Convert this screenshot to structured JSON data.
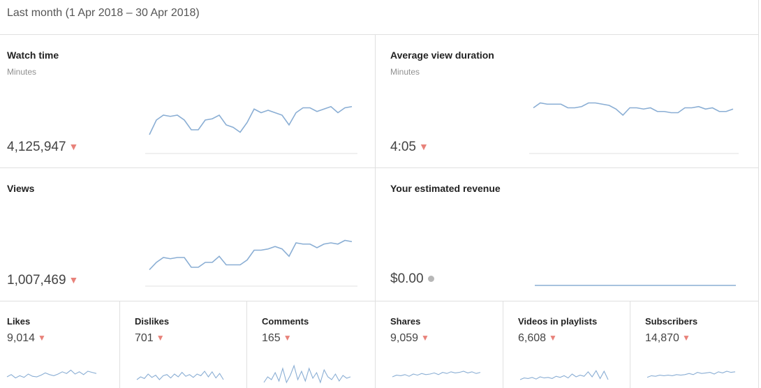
{
  "header": {
    "period": "Last month (1 Apr 2018 – 30 Apr 2018)"
  },
  "colors": {
    "spark": "#8aaed4",
    "down": "#e8827a",
    "axis": "#e0e0e0"
  },
  "big_cards": [
    {
      "id": "watch-time",
      "title": "Watch time",
      "subtitle": "Minutes",
      "value": "4,125,947",
      "trend": "down",
      "spark": [
        58,
        70,
        74,
        73,
        74,
        70,
        62,
        62,
        70,
        71,
        74,
        66,
        64,
        60,
        68,
        79,
        76,
        78,
        76,
        74,
        66,
        76,
        80,
        80,
        77,
        79,
        81,
        76,
        80,
        81
      ]
    },
    {
      "id": "average-view-duration",
      "title": "Average view duration",
      "subtitle": "Minutes",
      "value": "4:05",
      "trend": "down",
      "spark": [
        80,
        84,
        83,
        83,
        83,
        80,
        80,
        81,
        84,
        84,
        83,
        82,
        79,
        74,
        80,
        80,
        79,
        80,
        77,
        77,
        76,
        76,
        80,
        80,
        81,
        79,
        80,
        77,
        77,
        79
      ]
    },
    {
      "id": "views",
      "title": "Views",
      "subtitle": "",
      "value": "1,007,469",
      "trend": "down",
      "spark": [
        56,
        62,
        66,
        65,
        66,
        66,
        58,
        58,
        62,
        62,
        67,
        60,
        60,
        60,
        64,
        72,
        72,
        73,
        75,
        73,
        67,
        78,
        77,
        77,
        74,
        77,
        78,
        77,
        80,
        79
      ]
    },
    {
      "id": "estimated-revenue",
      "title": "Your estimated revenue",
      "subtitle": "",
      "value": "$0.00",
      "trend": "neutral",
      "spark": [
        0,
        0,
        0,
        0,
        0,
        0,
        0,
        0,
        0,
        0,
        0,
        0,
        0,
        0,
        0,
        0,
        0,
        0,
        0,
        0,
        0,
        0,
        0,
        0,
        0,
        0,
        0,
        0,
        0,
        0
      ]
    }
  ],
  "small_cards": [
    {
      "id": "likes",
      "title": "Likes",
      "value": "9,014",
      "trend": "down",
      "spark": [
        40,
        48,
        36,
        44,
        38,
        50,
        42,
        40,
        46,
        54,
        48,
        44,
        50,
        58,
        52,
        64,
        50,
        58,
        48,
        60,
        56,
        52
      ]
    },
    {
      "id": "dislikes",
      "title": "Dislikes",
      "value": "701",
      "trend": "down",
      "spark": [
        30,
        40,
        34,
        50,
        38,
        46,
        30,
        44,
        48,
        36,
        50,
        40,
        56,
        42,
        48,
        38,
        50,
        44,
        60,
        40,
        58,
        36,
        52,
        30
      ]
    },
    {
      "id": "comments",
      "title": "Comments",
      "value": "165",
      "trend": "down",
      "spark": [
        20,
        40,
        30,
        55,
        25,
        70,
        20,
        45,
        80,
        30,
        60,
        25,
        70,
        35,
        55,
        20,
        65,
        40,
        30,
        50,
        25,
        45,
        35,
        40
      ]
    },
    {
      "id": "shares",
      "title": "Shares",
      "value": "9,059",
      "trend": "down",
      "spark": [
        40,
        46,
        44,
        48,
        42,
        50,
        46,
        52,
        48,
        50,
        54,
        48,
        56,
        52,
        58,
        54,
        56,
        60,
        54,
        58,
        52,
        56
      ]
    },
    {
      "id": "videos-in-playlists",
      "title": "Videos in playlists",
      "value": "6,608",
      "trend": "down",
      "spark": [
        30,
        36,
        34,
        38,
        32,
        40,
        36,
        38,
        34,
        42,
        38,
        44,
        36,
        50,
        40,
        46,
        42,
        58,
        40,
        62,
        34,
        60,
        30
      ]
    },
    {
      "id": "subscribers",
      "title": "Subscribers",
      "value": "14,870",
      "trend": "down",
      "spark": [
        38,
        44,
        42,
        46,
        44,
        46,
        44,
        48,
        46,
        48,
        52,
        48,
        56,
        52,
        54,
        56,
        50,
        58,
        54,
        60,
        56,
        58
      ]
    }
  ]
}
